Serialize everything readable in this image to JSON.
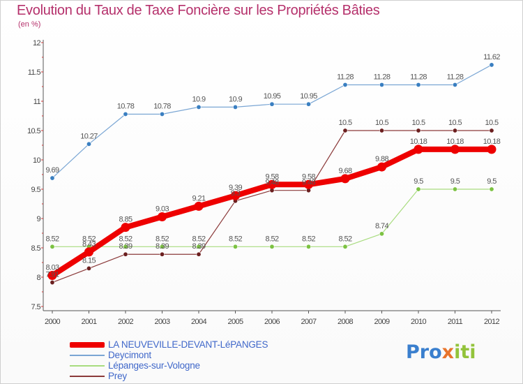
{
  "title": "Evolution du Taux de Taxe Foncière sur les Propriétés Bâties",
  "subtitle": "(en %)",
  "brand": {
    "part1": "Pro",
    "part2": "x",
    "part3": "iti"
  },
  "colors": {
    "title": "#b5306b",
    "axis": "#444444",
    "grid_tick": "#cc3333",
    "legend_text": "#3f67c9"
  },
  "chart_data": {
    "type": "line",
    "title": "Evolution du Taux de Taxe Foncière sur les Propriétés Bâties",
    "ylabel": "(en %)",
    "xlabel": "",
    "ylim": [
      7.5,
      12
    ],
    "yticks": [
      7.5,
      8,
      8.5,
      9,
      9.5,
      10,
      10.5,
      11,
      11.5,
      12
    ],
    "ytick_labels": [
      "7.5",
      "8",
      "8.5",
      "9",
      "9.5",
      "10",
      "10.5",
      "11",
      "11.5",
      "12"
    ],
    "x": [
      "2000",
      "2001",
      "2002",
      "2003",
      "2004",
      "2005",
      "2006",
      "2007",
      "2008",
      "2009",
      "2010",
      "2011",
      "2012"
    ],
    "series": [
      {
        "name": "Deycimont",
        "color": "#7aa6d4",
        "marker": "#3a7fc1",
        "width": 1.2,
        "values": [
          9.69,
          10.27,
          10.78,
          10.78,
          10.9,
          10.9,
          10.95,
          10.95,
          11.28,
          11.28,
          11.28,
          11.28,
          11.62
        ],
        "labels": [
          "9.69",
          "10.27",
          "10.78",
          "10.78",
          "10.9",
          "10.9",
          "10.95",
          "10.95",
          "11.28",
          "11.28",
          "11.28",
          "11.28",
          "11.62"
        ]
      },
      {
        "name": "Lépanges-sur-Vologne",
        "color": "#a8dc7f",
        "marker": "#7cc242",
        "width": 1.2,
        "values": [
          8.52,
          8.52,
          8.52,
          8.52,
          8.52,
          8.52,
          8.52,
          8.52,
          8.52,
          8.74,
          9.5,
          9.5,
          9.5
        ],
        "labels": [
          "8.52",
          "8.52",
          "8.52",
          "8.52",
          "8.52",
          "8.52",
          "8.52",
          "8.52",
          "8.52",
          "8.74",
          "9.5",
          "9.5",
          "9.5"
        ]
      },
      {
        "name": "Prey",
        "color": "#8b3a3a",
        "marker": "#6b1f1f",
        "width": 1.2,
        "values": [
          7.91,
          8.15,
          8.39,
          8.39,
          8.39,
          9.3,
          9.48,
          9.48,
          10.5,
          10.5,
          10.5,
          10.5,
          10.5
        ],
        "labels": [
          "7.91",
          "8.15",
          "8.39",
          "8.39",
          "8.39",
          "9.3",
          "9.48",
          "9.48",
          "10.5",
          "10.5",
          "10.5",
          "10.5",
          "10.5"
        ]
      },
      {
        "name": "LA NEUVEVILLE-DEVANT-LéPANGES",
        "color": "#ee0000",
        "marker": "#ee0000",
        "width": 8,
        "values": [
          8.03,
          8.43,
          8.85,
          9.03,
          9.21,
          9.39,
          9.58,
          9.58,
          9.68,
          9.88,
          10.18,
          10.18,
          10.18
        ],
        "labels": [
          "8.03",
          "8.43",
          "8.85",
          "9.03",
          "9.21",
          "9.39",
          "9.58",
          "9.58",
          "9.68",
          "9.88",
          "10.18",
          "10.18",
          "10.18"
        ]
      }
    ],
    "legend": [
      {
        "name": "LA NEUVEVILLE-DEVANT-LéPANGES",
        "color": "#ee0000",
        "thick": true
      },
      {
        "name": "Deycimont",
        "color": "#7aa6d4",
        "thick": false
      },
      {
        "name": "Lépanges-sur-Vologne",
        "color": "#a8dc7f",
        "thick": false
      },
      {
        "name": "Prey",
        "color": "#8b3a3a",
        "thick": false
      }
    ],
    "legend_position": "bottom-left"
  }
}
